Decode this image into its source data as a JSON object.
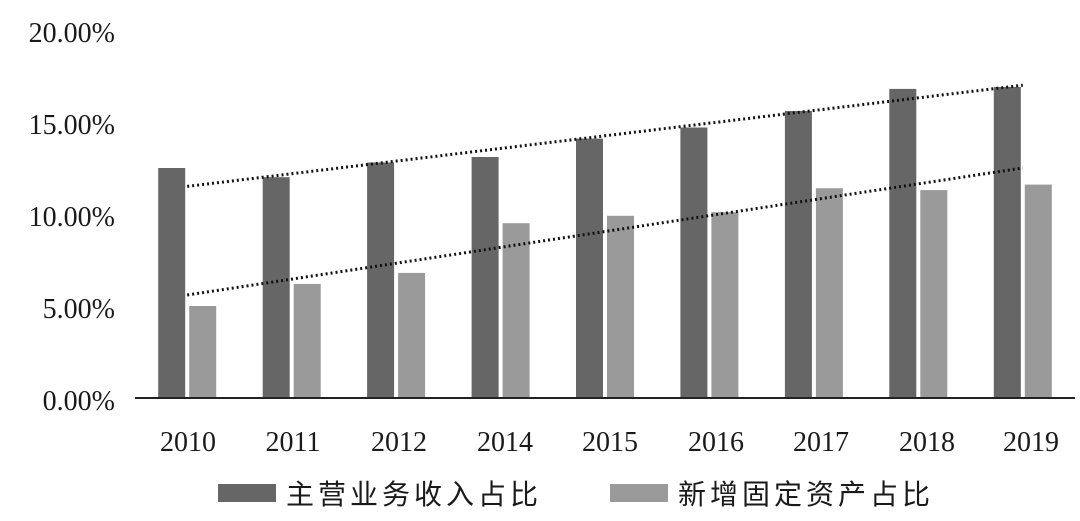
{
  "chart_data": {
    "type": "bar",
    "categories": [
      "2010",
      "2011",
      "2012",
      "2014",
      "2015",
      "2016",
      "2017",
      "2018",
      "2019"
    ],
    "series": [
      {
        "name": "主营业务收入占比",
        "color": "#666666",
        "values": [
          12.5,
          12.0,
          12.8,
          13.1,
          14.1,
          14.7,
          15.6,
          16.8,
          16.9
        ]
      },
      {
        "name": "新增固定资产占比",
        "color": "#9a9a9a",
        "values": [
          5.0,
          6.2,
          6.8,
          9.5,
          9.9,
          10.1,
          11.4,
          11.3,
          11.6
        ]
      }
    ],
    "trendlines": [
      {
        "series": "主营业务收入占比",
        "start": 11.5,
        "end": 17.0,
        "style": "dotted"
      },
      {
        "series": "新增固定资产占比",
        "start": 5.6,
        "end": 12.5,
        "style": "dotted"
      }
    ],
    "yticks": [
      "0.00%",
      "5.00%",
      "10.00%",
      "15.00%",
      "20.00%"
    ],
    "ylim": [
      0,
      20
    ],
    "grid": false,
    "legend": "bottom"
  }
}
